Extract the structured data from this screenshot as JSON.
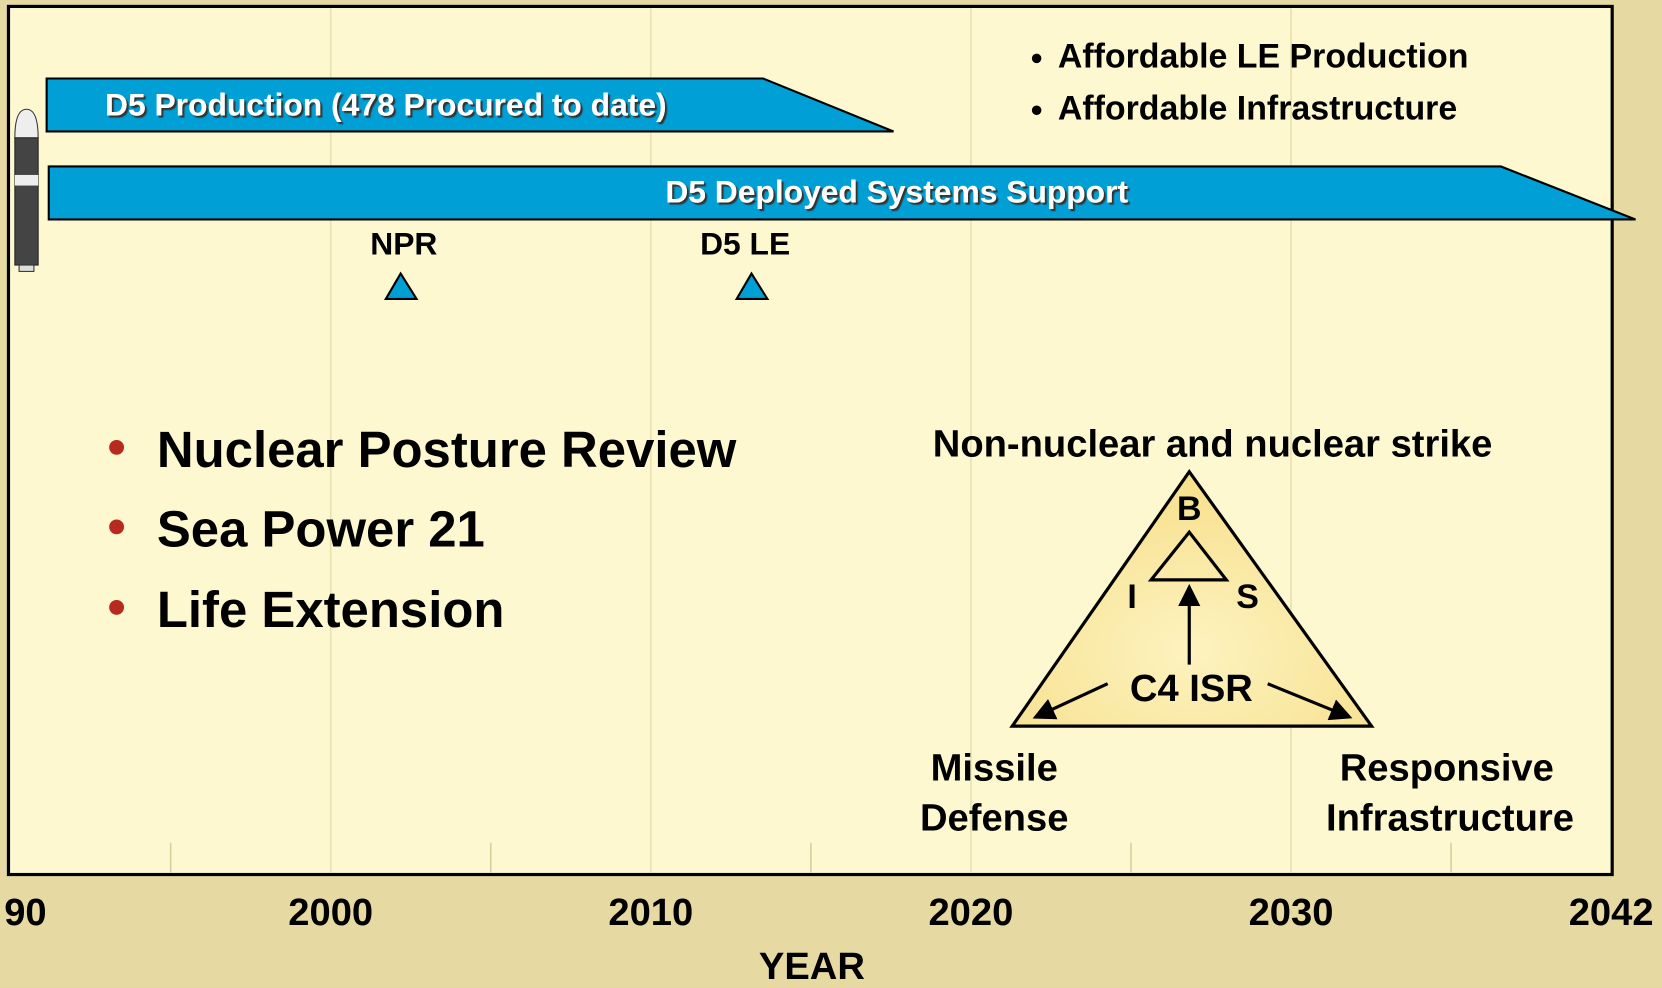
{
  "timeline": {
    "bars": [
      {
        "label": "D5 Production (478 Procured to date)"
      },
      {
        "label": "D5 Deployed Systems Support"
      }
    ],
    "milestones": [
      {
        "label": "NPR"
      },
      {
        "label": "D5 LE"
      }
    ],
    "axis": {
      "ticks": [
        "90",
        "2000",
        "2010",
        "2020",
        "2030",
        "2042"
      ],
      "label": "YEAR"
    }
  },
  "goals": [
    "Affordable LE Production",
    "Affordable Infrastructure"
  ],
  "drivers": [
    "Nuclear Posture Review",
    "Sea Power 21",
    "Life Extension"
  ],
  "triad": {
    "title": "Non-nuclear and nuclear strike",
    "top": "B",
    "left": "I",
    "right": "S",
    "center": "C4 ISR",
    "bottom_left": [
      "Missile",
      "Defense"
    ],
    "bottom_right": [
      "Responsive",
      "Infrastructure"
    ]
  }
}
